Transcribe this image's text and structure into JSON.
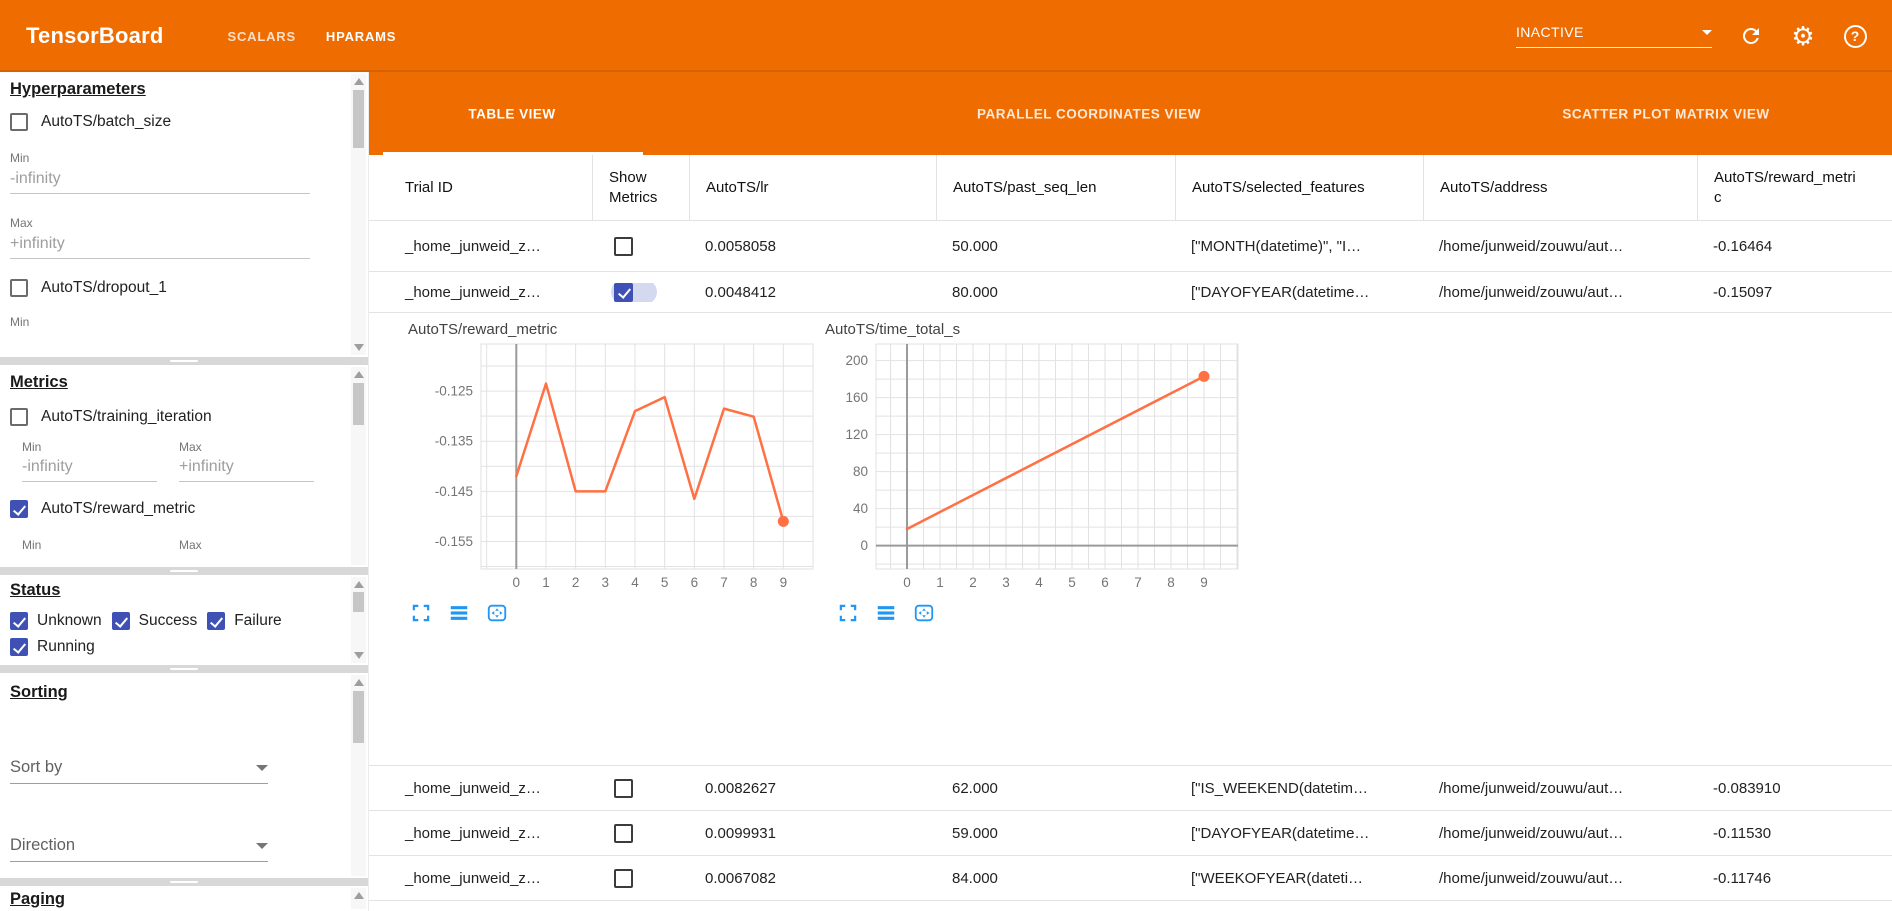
{
  "colors": {
    "header_orange": "#ef6c00",
    "checkbox_blue": "#3f51b5",
    "control_icon_blue": "#2196f3",
    "chart_line": "#ff7043"
  },
  "header": {
    "title": "TensorBoard",
    "nav": [
      {
        "label": "SCALARS",
        "active": false
      },
      {
        "label": "HPARAMS",
        "active": true
      }
    ],
    "run_status_dropdown": {
      "value": "INACTIVE"
    },
    "help_glyph": "?",
    "gear_glyph": "⚙"
  },
  "sidebar": {
    "sections": [
      {
        "title": "Hyperparameters",
        "checkbox1": {
          "label": "AutoTS/batch_size",
          "checked": false
        },
        "min_field": {
          "label": "Min",
          "value": "-infinity"
        },
        "max_field": {
          "label": "Max",
          "value": "+infinity"
        },
        "checkbox2": {
          "label": "AutoTS/dropout_1",
          "checked": false
        },
        "clipped_label": "Min"
      },
      {
        "title": "Metrics",
        "checkbox1": {
          "label": "AutoTS/training_iteration",
          "checked": false
        },
        "min_field": {
          "label": "Min",
          "value": "-infinity"
        },
        "max_field": {
          "label": "Max",
          "value": "+infinity"
        },
        "checkbox2": {
          "label": "AutoTS/reward_metric",
          "checked": true
        },
        "clipped_min_label": "Min",
        "clipped_max_label": "Max"
      },
      {
        "title": "Status",
        "checkboxes": [
          {
            "label": "Unknown",
            "checked": true
          },
          {
            "label": "Success",
            "checked": true
          },
          {
            "label": "Failure",
            "checked": true
          },
          {
            "label": "Running",
            "checked": true
          }
        ]
      },
      {
        "title": "Sorting",
        "sort_by_label": "Sort by",
        "direction_label": "Direction"
      },
      {
        "title": "Paging"
      }
    ]
  },
  "main": {
    "view_tabs": [
      {
        "label": "TABLE VIEW",
        "active": true
      },
      {
        "label": "PARALLEL COORDINATES VIEW",
        "active": false
      },
      {
        "label": "SCATTER PLOT MATRIX VIEW",
        "active": false
      }
    ],
    "table": {
      "columns": [
        "Trial ID",
        "Show Metrics",
        "AutoTS/lr",
        "AutoTS/past_seq_len",
        "AutoTS/selected_features",
        "AutoTS/address",
        "AutoTS/reward_metric"
      ],
      "rows_above_charts": [
        {
          "trial_id": "_home_junweid_z…",
          "show_metrics": false,
          "lr": "0.0058058",
          "past_seq_len": "50.000",
          "selected_features": "[\"MONTH(datetime)\", \"I…",
          "address": "/home/junweid/zouwu/aut…",
          "reward_metric": "-0.16464"
        },
        {
          "trial_id": "_home_junweid_z…",
          "show_metrics": true,
          "lr": "0.0048412",
          "past_seq_len": "80.000",
          "selected_features": "[\"DAYOFYEAR(datetime…",
          "address": "/home/junweid/zouwu/aut…",
          "reward_metric": "-0.15097"
        }
      ],
      "rows_below_charts": [
        {
          "trial_id": "_home_junweid_z…",
          "show_metrics": false,
          "lr": "0.0082627",
          "past_seq_len": "62.000",
          "selected_features": "[\"IS_WEEKEND(datetim…",
          "address": "/home/junweid/zouwu/aut…",
          "reward_metric": "-0.083910"
        },
        {
          "trial_id": "_home_junweid_z…",
          "show_metrics": false,
          "lr": "0.0099931",
          "past_seq_len": "59.000",
          "selected_features": "[\"DAYOFYEAR(datetime…",
          "address": "/home/junweid/zouwu/aut…",
          "reward_metric": "-0.11530"
        },
        {
          "trial_id": "_home_junweid_z…",
          "show_metrics": false,
          "lr": "0.0067082",
          "past_seq_len": "84.000",
          "selected_features": "[\"WEEKOFYEAR(dateti…",
          "address": "/home/junweid/zouwu/aut…",
          "reward_metric": "-0.11746"
        }
      ]
    },
    "chart_controls": [
      {
        "name": "fullscreen"
      },
      {
        "name": "view-list"
      },
      {
        "name": "fit-to-domain"
      }
    ]
  },
  "chart_data": [
    {
      "type": "line",
      "title": "AutoTS/reward_metric",
      "x": [
        0,
        1,
        2,
        3,
        4,
        5,
        6,
        7,
        8,
        9
      ],
      "values": [
        -0.142,
        -0.1235,
        -0.145,
        -0.145,
        -0.129,
        -0.1262,
        -0.1465,
        -0.1285,
        -0.1301,
        -0.151
      ],
      "xlim": [
        -1.19,
        10.0
      ],
      "ylim": [
        -0.1605,
        -0.1156
      ],
      "xticks": [
        0,
        1,
        2,
        3,
        4,
        5,
        6,
        7,
        8,
        9
      ],
      "xtick_labels": [
        "0",
        "1",
        "2",
        "3",
        "4",
        "5",
        "6",
        "7",
        "8",
        "9"
      ],
      "yticks": [
        -0.125,
        -0.135,
        -0.145,
        -0.155
      ],
      "ytick_labels": [
        "-0.125",
        "-0.135",
        "-0.145",
        "-0.155"
      ],
      "x_grid_step": 1,
      "y_grid_step": 0.005,
      "zero_axis_lines": {
        "x": true,
        "y": false
      },
      "line_color": "#ff7043",
      "end_marker": true,
      "grid": true,
      "legend": null
    },
    {
      "type": "line",
      "title": "AutoTS/time_total_s",
      "x": [
        0,
        9
      ],
      "values": [
        18,
        183
      ],
      "xlim": [
        -0.94,
        10.03
      ],
      "ylim": [
        -25.3,
        218
      ],
      "xticks": [
        0,
        1,
        2,
        3,
        4,
        5,
        6,
        7,
        8,
        9
      ],
      "xtick_labels": [
        "0",
        "1",
        "2",
        "3",
        "4",
        "5",
        "6",
        "7",
        "8",
        "9"
      ],
      "yticks": [
        0,
        40,
        80,
        120,
        160,
        200
      ],
      "ytick_labels": [
        "0",
        "40",
        "80",
        "120",
        "160",
        "200"
      ],
      "x_grid_step": 0.5,
      "y_grid_step": 20,
      "zero_axis_lines": {
        "x": true,
        "y": true
      },
      "line_color": "#ff7043",
      "end_marker": true,
      "grid": true,
      "legend": null
    }
  ]
}
